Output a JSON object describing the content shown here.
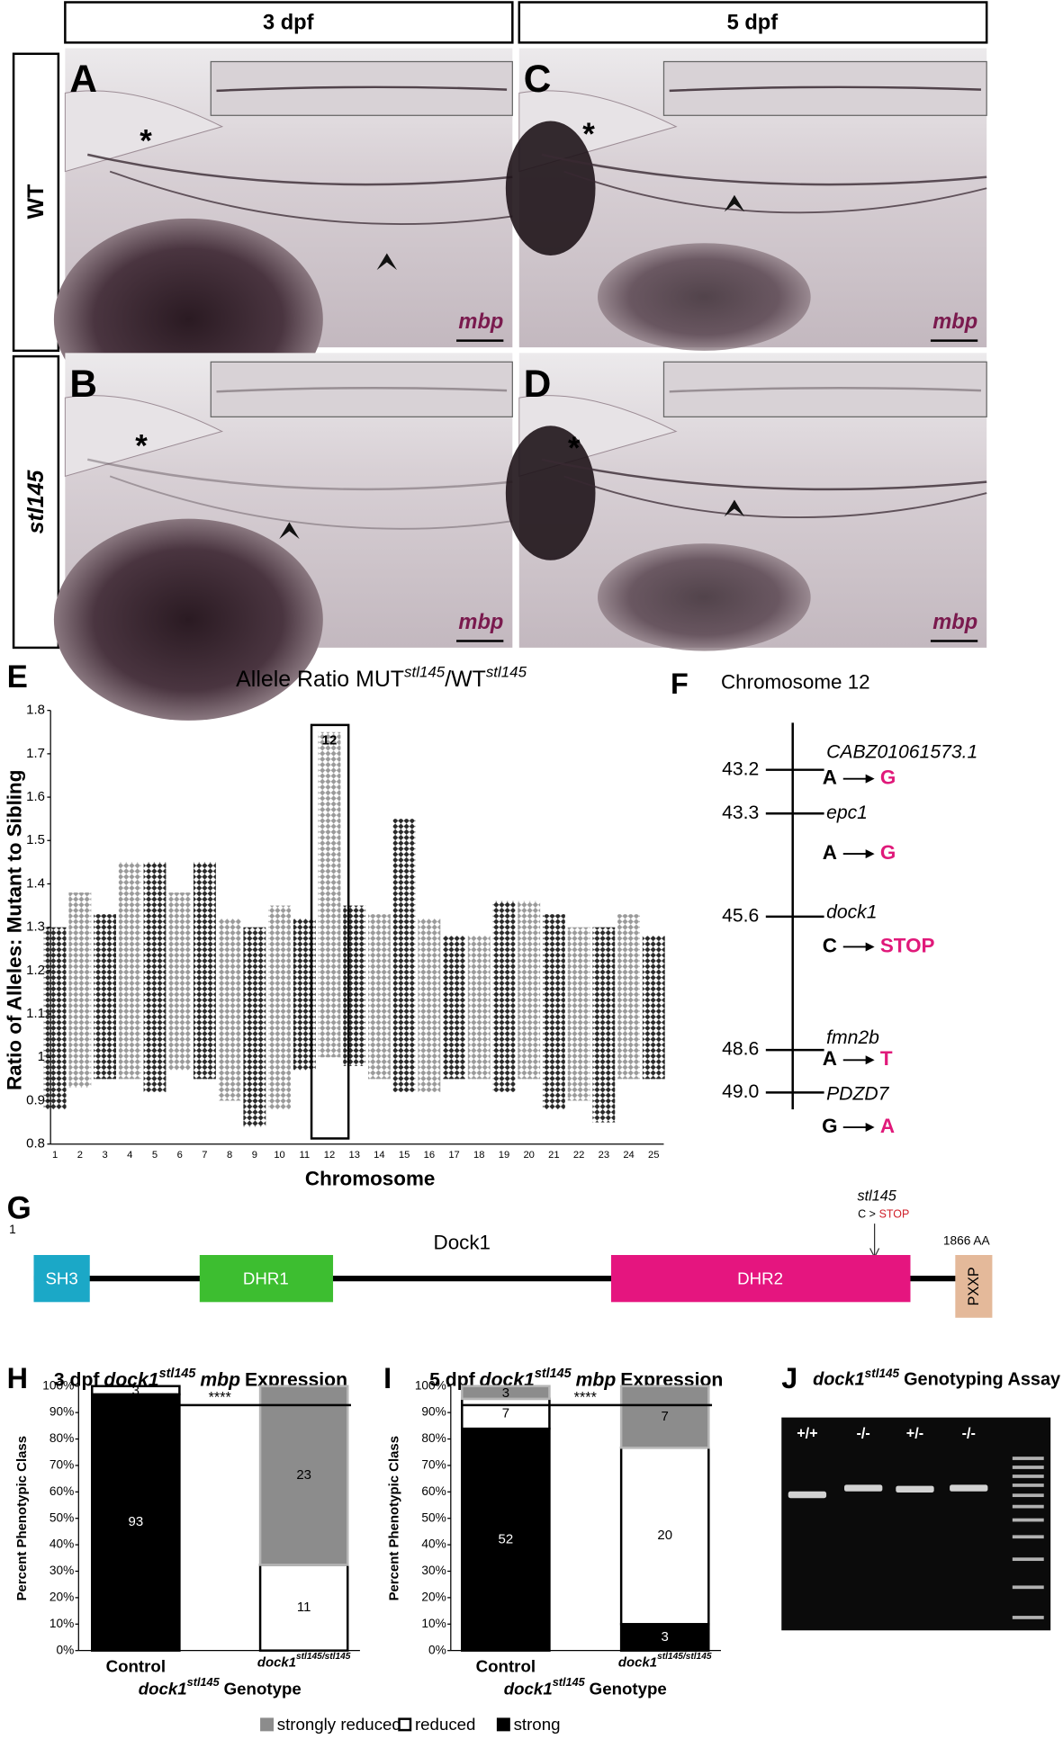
{
  "panels": {
    "column_headers": [
      "3 dpf",
      "5 dpf"
    ],
    "row_headers": [
      "WT",
      "stl145"
    ],
    "images": [
      {
        "letter": "A",
        "stain": "mbp",
        "marker": "*"
      },
      {
        "letter": "B",
        "stain": "mbp",
        "marker": "*"
      },
      {
        "letter": "C",
        "stain": "mbp",
        "marker": "*"
      },
      {
        "letter": "D",
        "stain": "mbp",
        "marker": "*"
      }
    ]
  },
  "chart_data": [
    {
      "type": "scatter",
      "panel": "E",
      "title": [
        "Allele Ratio MUT",
        "stl145",
        "/WT",
        "stl145"
      ],
      "ylabel": "Ratio of Alleles: Mutant to Sibling",
      "xlabel": "Chromosome",
      "categories": [
        "1",
        "2",
        "3",
        "4",
        "5",
        "6",
        "7",
        "8",
        "9",
        "10",
        "11",
        "12",
        "13",
        "14",
        "15",
        "16",
        "17",
        "18",
        "19",
        "20",
        "21",
        "22",
        "23",
        "24",
        "25"
      ],
      "ranges": [
        [
          0.88,
          1.3
        ],
        [
          0.93,
          1.38
        ],
        [
          0.95,
          1.33
        ],
        [
          0.95,
          1.45
        ],
        [
          0.92,
          1.45
        ],
        [
          0.97,
          1.38
        ],
        [
          0.95,
          1.45
        ],
        [
          0.9,
          1.32
        ],
        [
          0.84,
          1.3
        ],
        [
          0.88,
          1.35
        ],
        [
          0.97,
          1.32
        ],
        [
          1.0,
          1.75
        ],
        [
          0.98,
          1.35
        ],
        [
          0.95,
          1.33
        ],
        [
          0.92,
          1.55
        ],
        [
          0.92,
          1.32
        ],
        [
          0.95,
          1.28
        ],
        [
          0.95,
          1.28
        ],
        [
          0.92,
          1.36
        ],
        [
          0.95,
          1.36
        ],
        [
          0.88,
          1.33
        ],
        [
          0.9,
          1.3
        ],
        [
          0.85,
          1.3
        ],
        [
          0.95,
          1.33
        ],
        [
          0.95,
          1.28
        ]
      ],
      "colors": [
        "#111111",
        "#8f8f8f"
      ],
      "highlight": "12",
      "ylim": [
        0.8,
        1.8
      ],
      "yticks": [
        0.8,
        0.9,
        {
          "value": 1,
          "label": "1"
        },
        1.1,
        1.2,
        1.3,
        1.4,
        1.5,
        1.6,
        1.7,
        1.8
      ]
    },
    {
      "type": "stacked_bar",
      "panel": "H",
      "title": [
        "3 dpf",
        "dock1",
        "stl145",
        "mbp",
        "Expression"
      ],
      "ylabel": "Percent Phenotypic Class",
      "xlabel": [
        "dock1",
        "stl145",
        "Genotype"
      ],
      "categories": [
        [
          "Control"
        ],
        [
          "dock1",
          "stl145/stl145"
        ]
      ],
      "significance": "****",
      "series": [
        {
          "name": "strong",
          "color": "#000000",
          "edgecolor": "#000000",
          "values": [
            96.9,
            0
          ],
          "counts": [
            93,
            null
          ]
        },
        {
          "name": "reduced",
          "color": "#ffffff",
          "edgecolor": "#000000",
          "values": [
            3.1,
            32.4
          ],
          "counts": [
            3,
            11
          ]
        },
        {
          "name": "strongly reduced",
          "color": "#8c8c8c",
          "edgecolor": "#b5b5b5",
          "values": [
            0,
            67.6
          ],
          "counts": [
            null,
            23
          ]
        }
      ],
      "ylim": [
        0,
        100
      ],
      "yticks": [
        {
          "value": 0,
          "label": "0%"
        },
        {
          "value": 10,
          "label": "10%"
        },
        {
          "value": 20,
          "label": "20%"
        },
        {
          "value": 30,
          "label": "30%"
        },
        {
          "value": 40,
          "label": "40%"
        },
        {
          "value": 50,
          "label": "50%"
        },
        {
          "value": 60,
          "label": "60%"
        },
        {
          "value": 70,
          "label": "70%"
        },
        {
          "value": 80,
          "label": "80%"
        },
        {
          "value": 90,
          "label": "90%"
        },
        {
          "value": 100,
          "label": "100%"
        }
      ]
    },
    {
      "type": "stacked_bar",
      "panel": "I",
      "title": [
        "5 dpf",
        "dock1",
        "stl145",
        "mbp",
        "Expression"
      ],
      "ylabel": "Percent Phenotypic Class",
      "xlabel": [
        "dock1",
        "stl145",
        "Genotype"
      ],
      "categories": [
        [
          "Control"
        ],
        [
          "dock1",
          "stl145/stl145"
        ]
      ],
      "significance": "****",
      "series": [
        {
          "color": "#000000",
          "edgecolor": "#000000",
          "values": [
            83.9,
            10
          ],
          "counts": [
            52,
            3
          ]
        },
        {
          "color": "#ffffff",
          "edgecolor": "#000000",
          "values": [
            11.3,
            66.7
          ],
          "counts": [
            7,
            20
          ]
        },
        {
          "color": "#8c8c8c",
          "edgecolor": "#b5b5b5",
          "values": [
            4.8,
            23.3
          ],
          "counts": [
            3,
            7
          ]
        }
      ],
      "ylim": [
        0,
        100
      ],
      "yticks": [
        {
          "value": 0,
          "label": "0%"
        },
        {
          "value": 10,
          "label": "10%"
        },
        {
          "value": 20,
          "label": "20%"
        },
        {
          "value": 30,
          "label": "30%"
        },
        {
          "value": 40,
          "label": "40%"
        },
        {
          "value": 50,
          "label": "50%"
        },
        {
          "value": 60,
          "label": "60%"
        },
        {
          "value": 70,
          "label": "70%"
        },
        {
          "value": 80,
          "label": "80%"
        },
        {
          "value": 90,
          "label": "90%"
        },
        {
          "value": 100,
          "label": "100%"
        }
      ]
    }
  ],
  "chromosome_map": {
    "letter": "F",
    "title": "Chromosome 12",
    "loci": [
      {
        "position": "43.2",
        "gene": "CABZ01061573.1",
        "from": "A",
        "to": "G"
      },
      {
        "position": "43.3",
        "gene": "epc1",
        "from": "A",
        "to": "G"
      },
      {
        "position": "45.6",
        "gene": "dock1",
        "from": "C",
        "to": "STOP"
      },
      {
        "position": "48.6",
        "gene": "fmn2b",
        "from": "A",
        "to": "T"
      },
      {
        "position": "49.0",
        "gene": "PDZD7",
        "from": "G",
        "to": "A"
      }
    ]
  },
  "protein": {
    "letter": "G",
    "start": "1",
    "name": "Dock1",
    "length": "1866 AA",
    "allele": "stl145",
    "mutation": [
      "C >",
      "STOP"
    ],
    "domains": [
      "SH3",
      "DHR1",
      "DHR2",
      "PXXP"
    ]
  },
  "gel": {
    "letter": "J",
    "title": [
      "dock1",
      "stl145",
      "Genotyping Assay"
    ],
    "lanes": [
      "+/+",
      "-/-",
      "+/-",
      "-/-"
    ]
  }
}
